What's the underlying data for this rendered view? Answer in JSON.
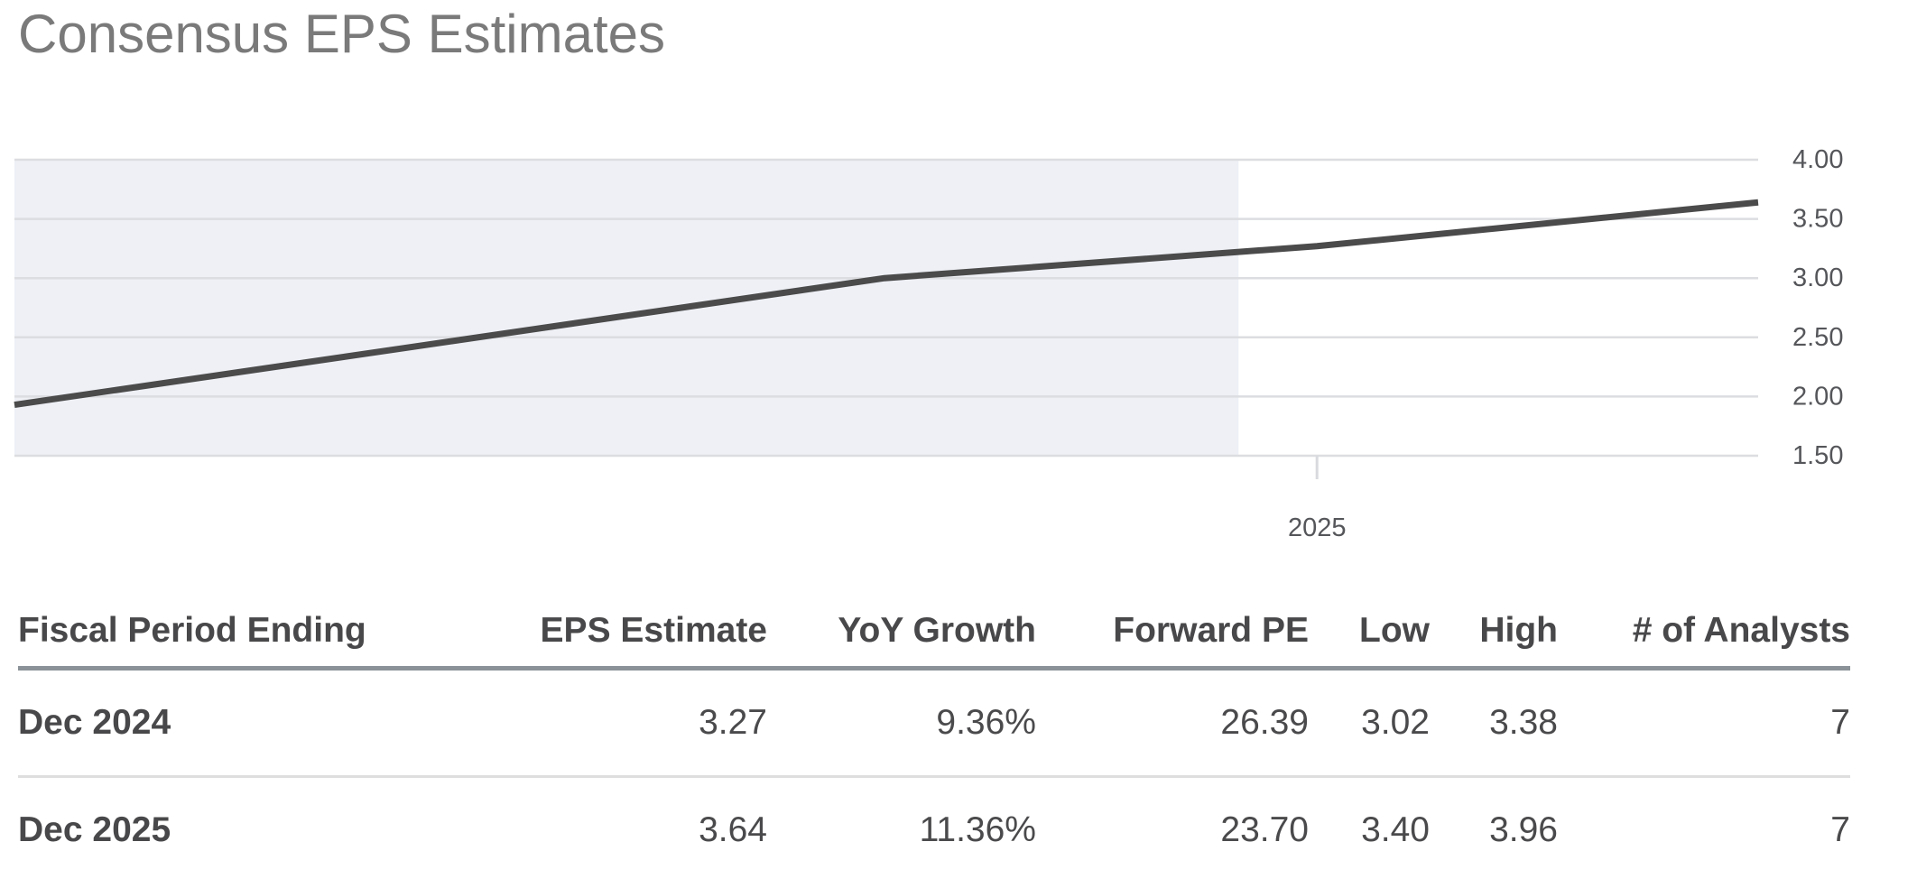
{
  "page": {
    "title": "Consensus EPS Estimates"
  },
  "chart_data": {
    "type": "line",
    "title": "Consensus EPS Estimates",
    "ylim": [
      1.5,
      4.0
    ],
    "y_ticks": [
      "4.00",
      "3.50",
      "3.00",
      "2.50",
      "2.00",
      "1.50"
    ],
    "x_ticks": [
      {
        "label": "2025",
        "x_frac": 0.747
      }
    ],
    "series": [
      {
        "name": "Consensus EPS",
        "points": [
          {
            "x_frac": 0.0,
            "value": 1.93
          },
          {
            "x_frac": 0.499,
            "value": 3.0
          },
          {
            "x_frac": 0.747,
            "value": 3.27
          },
          {
            "x_frac": 1.0,
            "value": 3.64
          }
        ]
      }
    ],
    "shaded_region": {
      "x_frac_start": 0.0,
      "x_frac_end": 0.702
    },
    "grid": "horizontal",
    "legend": "none",
    "colors": {
      "line": "#4b4b4b",
      "shade": "#eef0f6",
      "gridline": "#dcdde0",
      "axis_label": "#55565a",
      "axis_tick": "#d9dade"
    }
  },
  "table": {
    "headers": [
      "Fiscal Period Ending",
      "EPS Estimate",
      "YoY Growth",
      "Forward PE",
      "Low",
      "High",
      "# of Analysts"
    ],
    "rows": [
      {
        "period": "Dec 2024",
        "eps_estimate": "3.27",
        "yoy_growth": "9.36%",
        "forward_pe": "26.39",
        "low": "3.02",
        "high": "3.38",
        "analysts": "7"
      },
      {
        "period": "Dec 2025",
        "eps_estimate": "3.64",
        "yoy_growth": "11.36%",
        "forward_pe": "23.70",
        "low": "3.40",
        "high": "3.96",
        "analysts": "7"
      }
    ]
  }
}
